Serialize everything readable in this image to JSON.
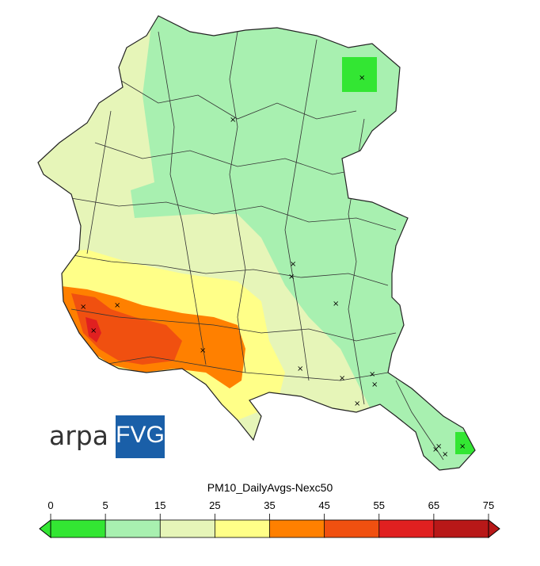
{
  "logo": {
    "arpa_text": "arpa",
    "fvg_text": "FVG"
  },
  "legend": {
    "title": "PM10_DailyAvgs-Nexc50",
    "ticks": [
      "0",
      "5",
      "15",
      "25",
      "35",
      "45",
      "55",
      "65",
      "75"
    ],
    "colors": [
      "#33e633",
      "#a8f0b0",
      "#e6f5b8",
      "#ffff88",
      "#ff8000",
      "#f05010",
      "#e02020",
      "#b81818"
    ]
  },
  "map": {
    "stations": 18
  }
}
